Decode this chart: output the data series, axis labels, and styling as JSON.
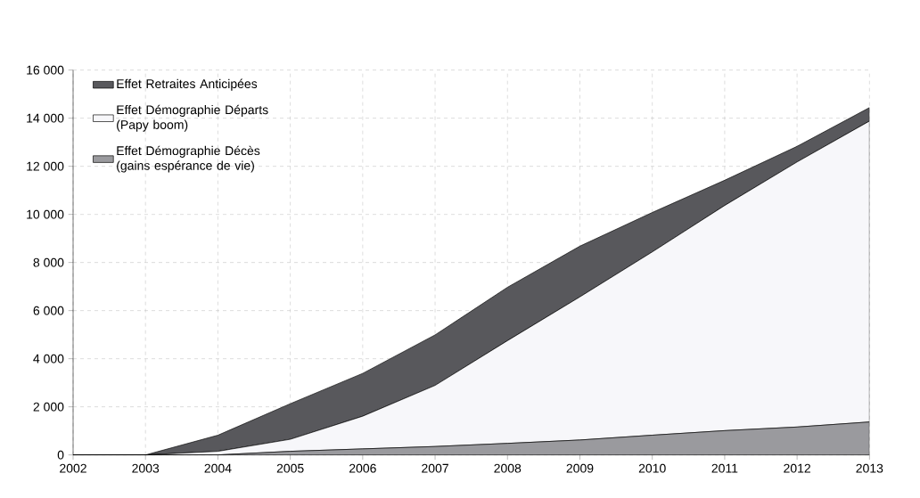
{
  "chart_data": {
    "type": "area",
    "stacked": true,
    "x": [
      2002,
      2003,
      2004,
      2005,
      2006,
      2007,
      2008,
      2009,
      2010,
      2011,
      2012,
      2013
    ],
    "series": [
      {
        "name": "Effet Démographie Décès (gains espérance de vie)",
        "color": "#9a9a9e",
        "values": [
          0,
          0,
          0,
          150,
          250,
          350,
          480,
          620,
          820,
          1010,
          1160,
          1370
        ]
      },
      {
        "name": "Effet Démographie Départs (Papy boom)",
        "color": "#f7f7fa",
        "values": [
          0,
          0,
          150,
          500,
          1360,
          2540,
          4270,
          5950,
          7620,
          9360,
          11020,
          12510
        ]
      },
      {
        "name": "Effet Retraites Anticipées",
        "color": "#58585c",
        "values": [
          0,
          0,
          670,
          1480,
          1780,
          2100,
          2220,
          2110,
          1640,
          1050,
          650,
          560
        ]
      }
    ],
    "xlim": [
      2002,
      2013
    ],
    "xticks": [
      2002,
      2003,
      2004,
      2005,
      2006,
      2007,
      2008,
      2009,
      2010,
      2011,
      2012,
      2013
    ],
    "ylim": [
      0,
      16000
    ],
    "yticks": [
      {
        "value": 0,
        "label": "0"
      },
      {
        "value": 2000,
        "label": "2 000"
      },
      {
        "value": 4000,
        "label": "4 000"
      },
      {
        "value": 6000,
        "label": "6 000"
      },
      {
        "value": 8000,
        "label": "8 000"
      },
      {
        "value": 10000,
        "label": "10 000"
      },
      {
        "value": 12000,
        "label": "12 000"
      },
      {
        "value": 14000,
        "label": "14 000"
      },
      {
        "value": 16000,
        "label": "16 000"
      }
    ],
    "grid": true,
    "legend": "top left"
  }
}
